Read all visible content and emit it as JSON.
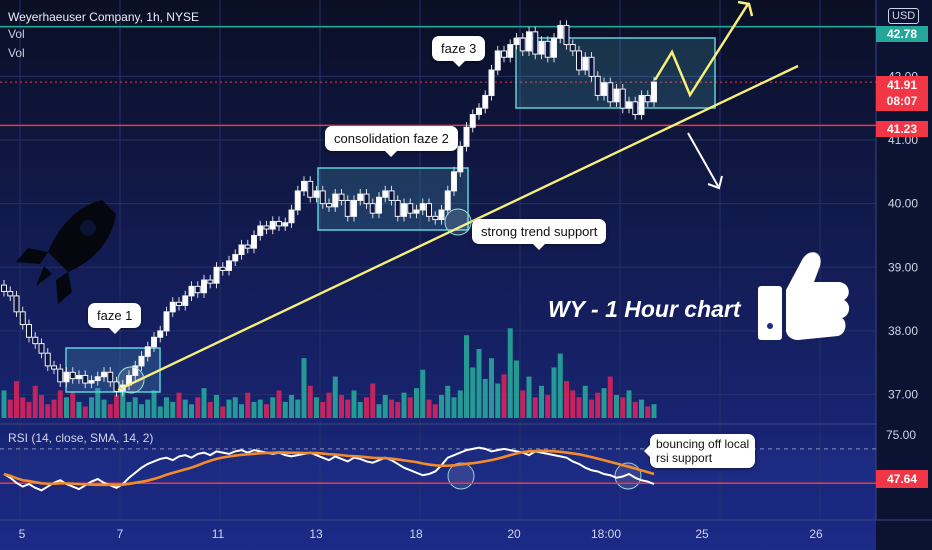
{
  "header": {
    "symbol_line": "Weyerhaeuser Company, 1h, NYSE",
    "vol_1": "Vol",
    "vol_2": "Vol",
    "currency": "USD"
  },
  "price_tags": {
    "top_line": "42.78",
    "last_price": "41.91",
    "countdown": "08:07",
    "support_line": "41.23"
  },
  "rsi_panel": {
    "label": "RSI (14, close, SMA, 14, 2)",
    "tag_value": "47.64",
    "axis_top": "75.00"
  },
  "annotations": {
    "faze1": "faze 1",
    "faze2": "consolidation faze 2",
    "faze3": "faze 3",
    "trend_support": "strong trend support",
    "rsi_support_line1": "bouncing off local",
    "rsi_support_line2": "rsi support",
    "chart_title": "WY - 1 Hour chart"
  },
  "icons": [
    "rocket-icon",
    "thumbs-up-icon"
  ],
  "colors": {
    "background": "#0b1232",
    "up_candle": "#e6e6e6",
    "down_candle": "#ffffff",
    "vol_up": "#26a69a",
    "vol_down": "#d6245c",
    "trendline": "#f7ef7a",
    "boxes": "#5fd0d6",
    "red_line": "#f23645",
    "green_line": "#26a69a",
    "rsi_line": "#ffffff",
    "rsi_ma": "#f28b2b"
  },
  "chart_data": {
    "type": "candlestick",
    "price_axis": {
      "ticks": [
        "37.00",
        "38.00",
        "39.00",
        "40.00",
        "41.00",
        "42.00"
      ],
      "range": [
        36.6,
        43.2
      ]
    },
    "time_axis": {
      "ticks": [
        "5",
        "7",
        "11",
        "13",
        "18",
        "20",
        "18:00",
        "25",
        "26"
      ]
    },
    "horizontal_lines": [
      {
        "value": 42.78,
        "color": "green"
      },
      {
        "value": 41.23,
        "color": "red"
      },
      {
        "value": 41.91,
        "style": "dotted",
        "color": "red"
      }
    ],
    "closes": [
      38.62,
      38.55,
      38.3,
      38.1,
      37.9,
      37.8,
      37.65,
      37.45,
      37.4,
      37.2,
      37.35,
      37.25,
      37.3,
      37.18,
      37.22,
      37.28,
      37.35,
      37.2,
      37.05,
      37.15,
      37.3,
      37.45,
      37.6,
      37.75,
      37.9,
      38.0,
      38.3,
      38.45,
      38.4,
      38.55,
      38.7,
      38.6,
      38.8,
      38.75,
      39.0,
      38.95,
      39.1,
      39.2,
      39.35,
      39.3,
      39.5,
      39.65,
      39.6,
      39.72,
      39.65,
      39.7,
      39.9,
      40.2,
      40.35,
      40.1,
      40.2,
      40.0,
      39.95,
      40.15,
      40.05,
      39.8,
      40.05,
      40.15,
      40.0,
      39.85,
      40.1,
      40.2,
      40.05,
      39.8,
      40.0,
      39.85,
      39.9,
      40.0,
      39.8,
      39.75,
      39.9,
      40.2,
      40.5,
      40.9,
      41.2,
      41.4,
      41.5,
      41.7,
      42.1,
      42.4,
      42.3,
      42.5,
      42.6,
      42.4,
      42.7,
      42.35,
      42.55,
      42.3,
      42.6,
      42.8,
      42.5,
      42.4,
      42.1,
      42.3,
      42.0,
      41.7,
      41.9,
      41.6,
      41.8,
      41.5,
      41.6,
      41.4,
      41.7,
      41.6,
      41.91
    ],
    "volume": [
      12,
      8,
      16,
      9,
      7,
      14,
      10,
      6,
      8,
      12,
      9,
      11,
      7,
      5,
      9,
      13,
      8,
      6,
      10,
      14,
      7,
      9,
      6,
      8,
      12,
      5,
      9,
      7,
      11,
      8,
      6,
      9,
      13,
      7,
      10,
      5,
      8,
      9,
      6,
      11,
      7,
      8,
      6,
      9,
      12,
      7,
      10,
      8,
      26,
      14,
      9,
      7,
      11,
      18,
      10,
      8,
      12,
      7,
      9,
      15,
      6,
      10,
      8,
      7,
      11,
      9,
      13,
      21,
      8,
      6,
      10,
      14,
      9,
      12,
      36,
      22,
      30,
      17,
      26,
      15,
      19,
      39,
      25,
      12,
      18,
      9,
      14,
      10,
      22,
      28,
      16,
      12,
      9,
      14,
      8,
      11,
      13,
      18,
      10,
      9,
      12,
      7,
      8,
      5,
      6
    ],
    "rsi": {
      "levels": [
        75.0,
        47.64
      ],
      "values": [
        55,
        52,
        48,
        45,
        47,
        44,
        42,
        45,
        48,
        50,
        47,
        45,
        43,
        46,
        49,
        51,
        48,
        46,
        44,
        47,
        52,
        56,
        60,
        63,
        65,
        67,
        68,
        66,
        69,
        70,
        68,
        71,
        72,
        70,
        73,
        72,
        71,
        73,
        74,
        72,
        74,
        73,
        72,
        71,
        72,
        70,
        69,
        70,
        71,
        72,
        70,
        68,
        66,
        69,
        67,
        65,
        68,
        67,
        65,
        64,
        66,
        68,
        66,
        63,
        60,
        58,
        56,
        54,
        55,
        57,
        62,
        68,
        70,
        72,
        74,
        75,
        76,
        75,
        73,
        74,
        75,
        74,
        73,
        72,
        70,
        73,
        72,
        71,
        70,
        69,
        68,
        65,
        63,
        60,
        58,
        57,
        55,
        54,
        52,
        53,
        55,
        52,
        50,
        49,
        47
      ]
    }
  }
}
